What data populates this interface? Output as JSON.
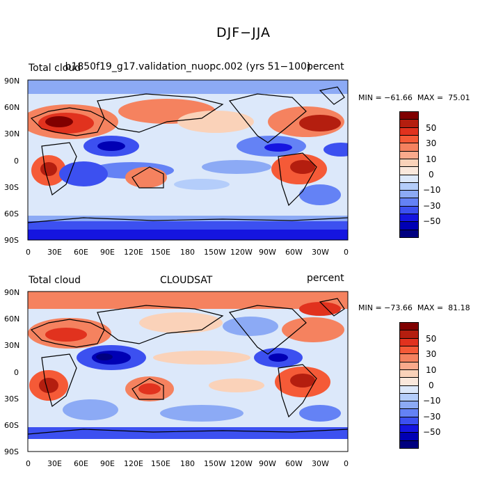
{
  "figure": {
    "title": "DJF−JJA",
    "lon_ticks": [
      "0",
      "30E",
      "60E",
      "90E",
      "120E",
      "150E",
      "180",
      "150W",
      "120W",
      "90W",
      "60W",
      "30W",
      "0"
    ],
    "lat_ticks": [
      "90N",
      "60N",
      "30N",
      "0",
      "30S",
      "60S",
      "90S"
    ]
  },
  "panels": [
    {
      "left_title": "Total cloud",
      "center_title": "b1850f19_g17.validation_nuopc.002 (yrs 51−100)",
      "right_title": "percent",
      "minmax": "MIN = −61.66  MAX =  75.01",
      "colorbar_labels": [
        "50",
        "30",
        "10",
        "0",
        "−10",
        "−30",
        "−50"
      ]
    },
    {
      "left_title": "Total cloud",
      "center_title": "CLOUDSAT",
      "right_title": "percent",
      "minmax": "MIN = −73.66  MAX =  81.18",
      "colorbar_labels": [
        "50",
        "30",
        "10",
        "0",
        "−10",
        "−30",
        "−50"
      ]
    }
  ],
  "colors": {
    "colorbar": [
      "#000080",
      "#0000b4",
      "#1515e0",
      "#3c50f0",
      "#6482f5",
      "#8caaf5",
      "#b4cdfa",
      "#dce8fa",
      "#fae8dc",
      "#fad2b9",
      "#faaa8c",
      "#f5825f",
      "#f55a37",
      "#e1321e",
      "#b41e0f",
      "#800000"
    ]
  }
}
